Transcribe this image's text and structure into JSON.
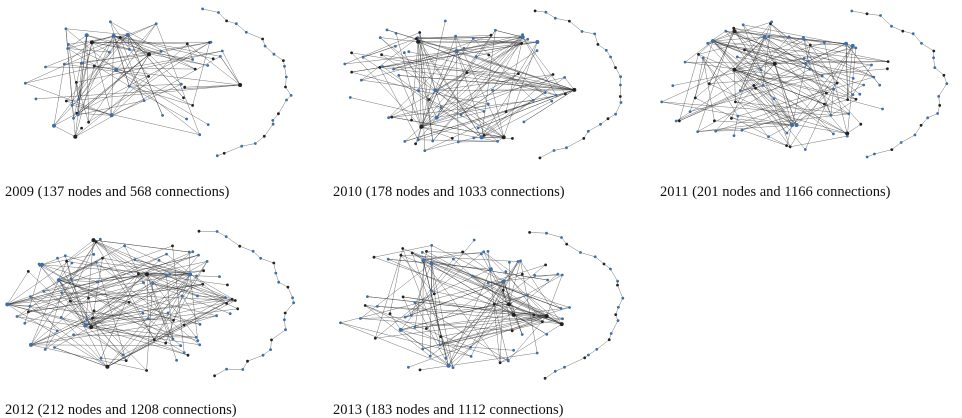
{
  "panels": [
    {
      "caption": "2009 (137 nodes and 568 connections)"
    },
    {
      "caption": "2010 (178 nodes and 1033 connections)"
    },
    {
      "caption": "2011 (201 nodes and 1166 connections)"
    },
    {
      "caption": "2012 (212 nodes and 1208 connections)"
    },
    {
      "caption": "2013 (183 nodes and 1112 connections)"
    }
  ]
}
